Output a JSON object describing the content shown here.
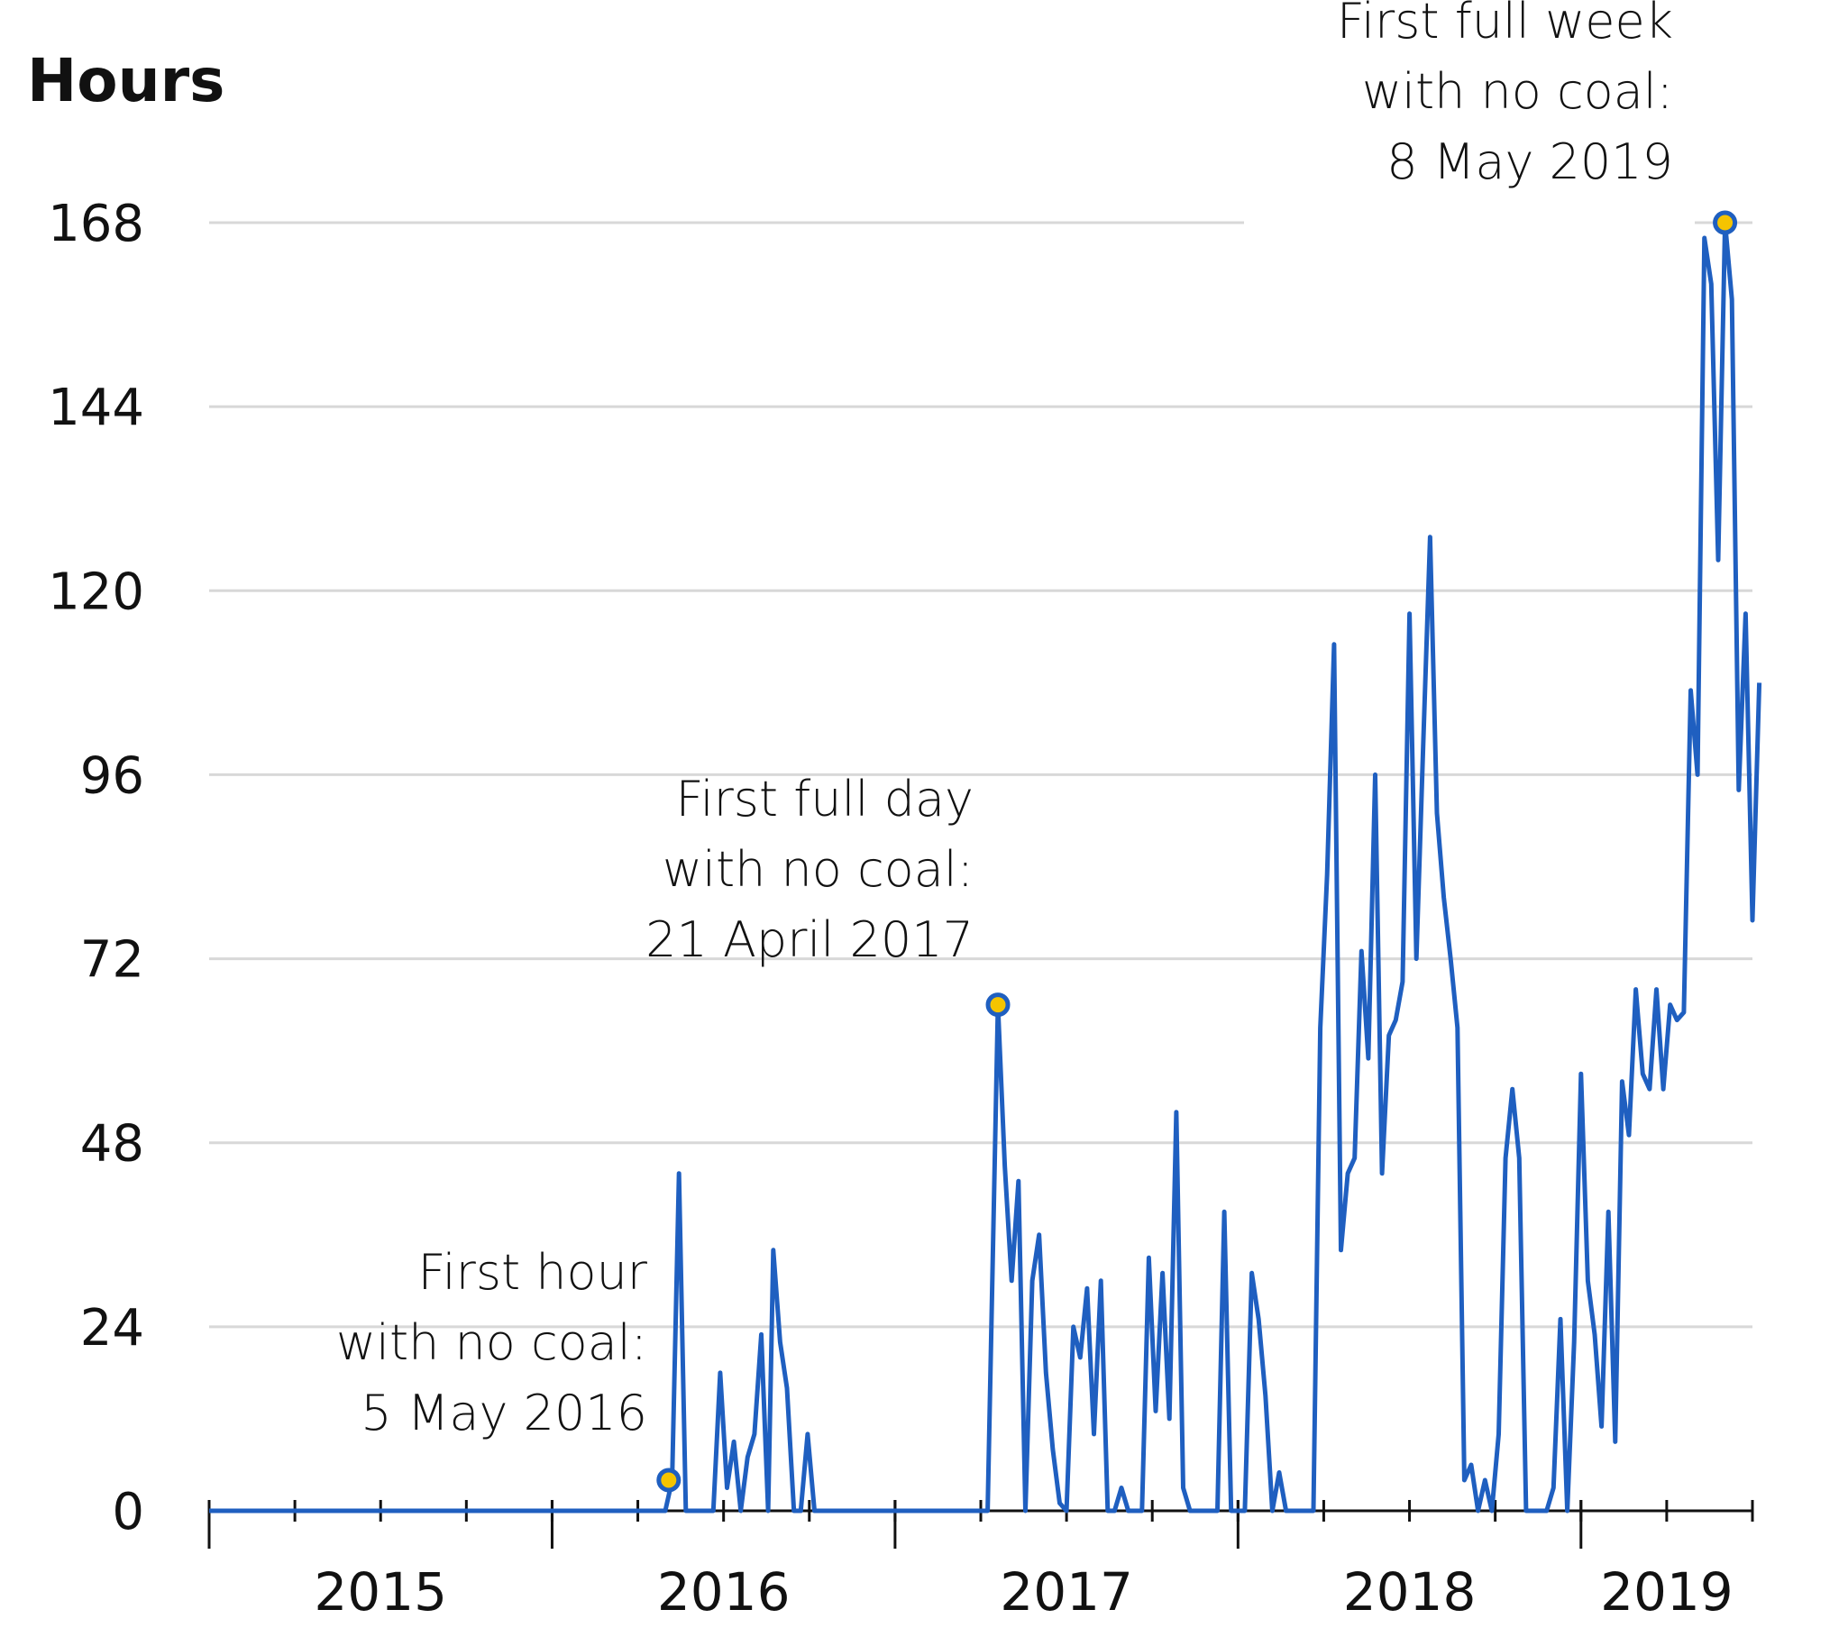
{
  "chart_data": {
    "type": "line",
    "ylabel": "Hours",
    "ylim": [
      0,
      168
    ],
    "yticks": [
      0,
      24,
      48,
      72,
      96,
      120,
      144,
      168
    ],
    "xlim": [
      2015.0,
      2019.5
    ],
    "xtick_labels": [
      {
        "label": "2015",
        "x": 2015.5
      },
      {
        "label": "2016",
        "x": 2016.5
      },
      {
        "label": "2017",
        "x": 2017.5
      },
      {
        "label": "2018",
        "x": 2018.5
      },
      {
        "label": "2019",
        "x": 2019.25
      }
    ],
    "year_boundaries": [
      2015.0,
      2016.0,
      2017.0,
      2018.0,
      2019.0
    ],
    "grid": true,
    "series": [
      {
        "color": "#1f5fc0",
        "points": [
          [
            2015.0,
            0
          ],
          [
            2016.33,
            0
          ],
          [
            2016.35,
            4
          ],
          [
            2016.37,
            44
          ],
          [
            2016.39,
            0
          ],
          [
            2016.47,
            0
          ],
          [
            2016.49,
            18
          ],
          [
            2016.51,
            3
          ],
          [
            2016.53,
            9
          ],
          [
            2016.55,
            0
          ],
          [
            2016.57,
            7
          ],
          [
            2016.59,
            10
          ],
          [
            2016.61,
            23
          ],
          [
            2016.63,
            0
          ],
          [
            2016.645,
            34
          ],
          [
            2016.665,
            22
          ],
          [
            2016.685,
            16
          ],
          [
            2016.705,
            0
          ],
          [
            2016.725,
            0
          ],
          [
            2016.745,
            10
          ],
          [
            2016.765,
            0
          ],
          [
            2017.27,
            0
          ],
          [
            2017.3,
            66
          ],
          [
            2017.32,
            45
          ],
          [
            2017.34,
            30
          ],
          [
            2017.36,
            43
          ],
          [
            2017.38,
            0
          ],
          [
            2017.4,
            30
          ],
          [
            2017.42,
            36
          ],
          [
            2017.44,
            18
          ],
          [
            2017.46,
            8
          ],
          [
            2017.48,
            1
          ],
          [
            2017.5,
            0
          ],
          [
            2017.52,
            24
          ],
          [
            2017.54,
            20
          ],
          [
            2017.56,
            29
          ],
          [
            2017.58,
            10
          ],
          [
            2017.6,
            30
          ],
          [
            2017.62,
            0
          ],
          [
            2017.64,
            0
          ],
          [
            2017.66,
            3
          ],
          [
            2017.68,
            0
          ],
          [
            2017.72,
            0
          ],
          [
            2017.74,
            33
          ],
          [
            2017.76,
            13
          ],
          [
            2017.78,
            31
          ],
          [
            2017.8,
            12
          ],
          [
            2017.82,
            52
          ],
          [
            2017.84,
            3
          ],
          [
            2017.86,
            0
          ],
          [
            2017.94,
            0
          ],
          [
            2017.96,
            39
          ],
          [
            2017.98,
            0
          ],
          [
            2018.02,
            0
          ],
          [
            2018.04,
            31
          ],
          [
            2018.06,
            25
          ],
          [
            2018.08,
            15
          ],
          [
            2018.1,
            0
          ],
          [
            2018.12,
            5
          ],
          [
            2018.14,
            0
          ],
          [
            2018.22,
            0
          ],
          [
            2018.24,
            63
          ],
          [
            2018.26,
            83
          ],
          [
            2018.28,
            113
          ],
          [
            2018.3,
            34
          ],
          [
            2018.32,
            44
          ],
          [
            2018.34,
            46
          ],
          [
            2018.36,
            73
          ],
          [
            2018.38,
            59
          ],
          [
            2018.4,
            96
          ],
          [
            2018.42,
            44
          ],
          [
            2018.44,
            62
          ],
          [
            2018.46,
            64
          ],
          [
            2018.48,
            69
          ],
          [
            2018.5,
            117
          ],
          [
            2018.52,
            72
          ],
          [
            2018.54,
            100
          ],
          [
            2018.56,
            127
          ],
          [
            2018.58,
            91
          ],
          [
            2018.6,
            80
          ],
          [
            2018.62,
            72
          ],
          [
            2018.64,
            63
          ],
          [
            2018.66,
            4
          ],
          [
            2018.68,
            6
          ],
          [
            2018.7,
            0
          ],
          [
            2018.72,
            4
          ],
          [
            2018.74,
            0
          ],
          [
            2018.76,
            10
          ],
          [
            2018.78,
            46
          ],
          [
            2018.8,
            55
          ],
          [
            2018.82,
            46
          ],
          [
            2018.84,
            0
          ],
          [
            2018.9,
            0
          ],
          [
            2018.92,
            3
          ],
          [
            2018.94,
            25
          ],
          [
            2018.96,
            0
          ],
          [
            2018.98,
            22
          ],
          [
            2019.0,
            57
          ],
          [
            2019.02,
            30
          ],
          [
            2019.04,
            23
          ],
          [
            2019.06,
            11
          ],
          [
            2019.08,
            39
          ],
          [
            2019.1,
            9
          ],
          [
            2019.12,
            56
          ],
          [
            2019.14,
            49
          ],
          [
            2019.16,
            68
          ],
          [
            2019.18,
            57
          ],
          [
            2019.2,
            55
          ],
          [
            2019.22,
            68
          ],
          [
            2019.24,
            55
          ],
          [
            2019.26,
            66
          ],
          [
            2019.28,
            64
          ],
          [
            2019.3,
            65
          ],
          [
            2019.32,
            107
          ],
          [
            2019.34,
            96
          ],
          [
            2019.36,
            166
          ],
          [
            2019.38,
            160
          ],
          [
            2019.4,
            124
          ],
          [
            2019.42,
            168
          ],
          [
            2019.44,
            158
          ],
          [
            2019.46,
            94
          ],
          [
            2019.48,
            117
          ],
          [
            2019.5,
            77
          ],
          [
            2019.52,
            108
          ]
        ]
      }
    ],
    "annotations": [
      {
        "lines": [
          "First hour",
          "with no coal:",
          "5 May 2016"
        ],
        "marker": [
          2016.34,
          4
        ]
      },
      {
        "lines": [
          "First full day",
          "with no coal:",
          "21 April 2017"
        ],
        "marker": [
          2017.3,
          66
        ]
      },
      {
        "lines": [
          "First full week",
          "with no coal:",
          "8 May 2019"
        ],
        "marker": [
          2019.42,
          168
        ]
      }
    ]
  }
}
